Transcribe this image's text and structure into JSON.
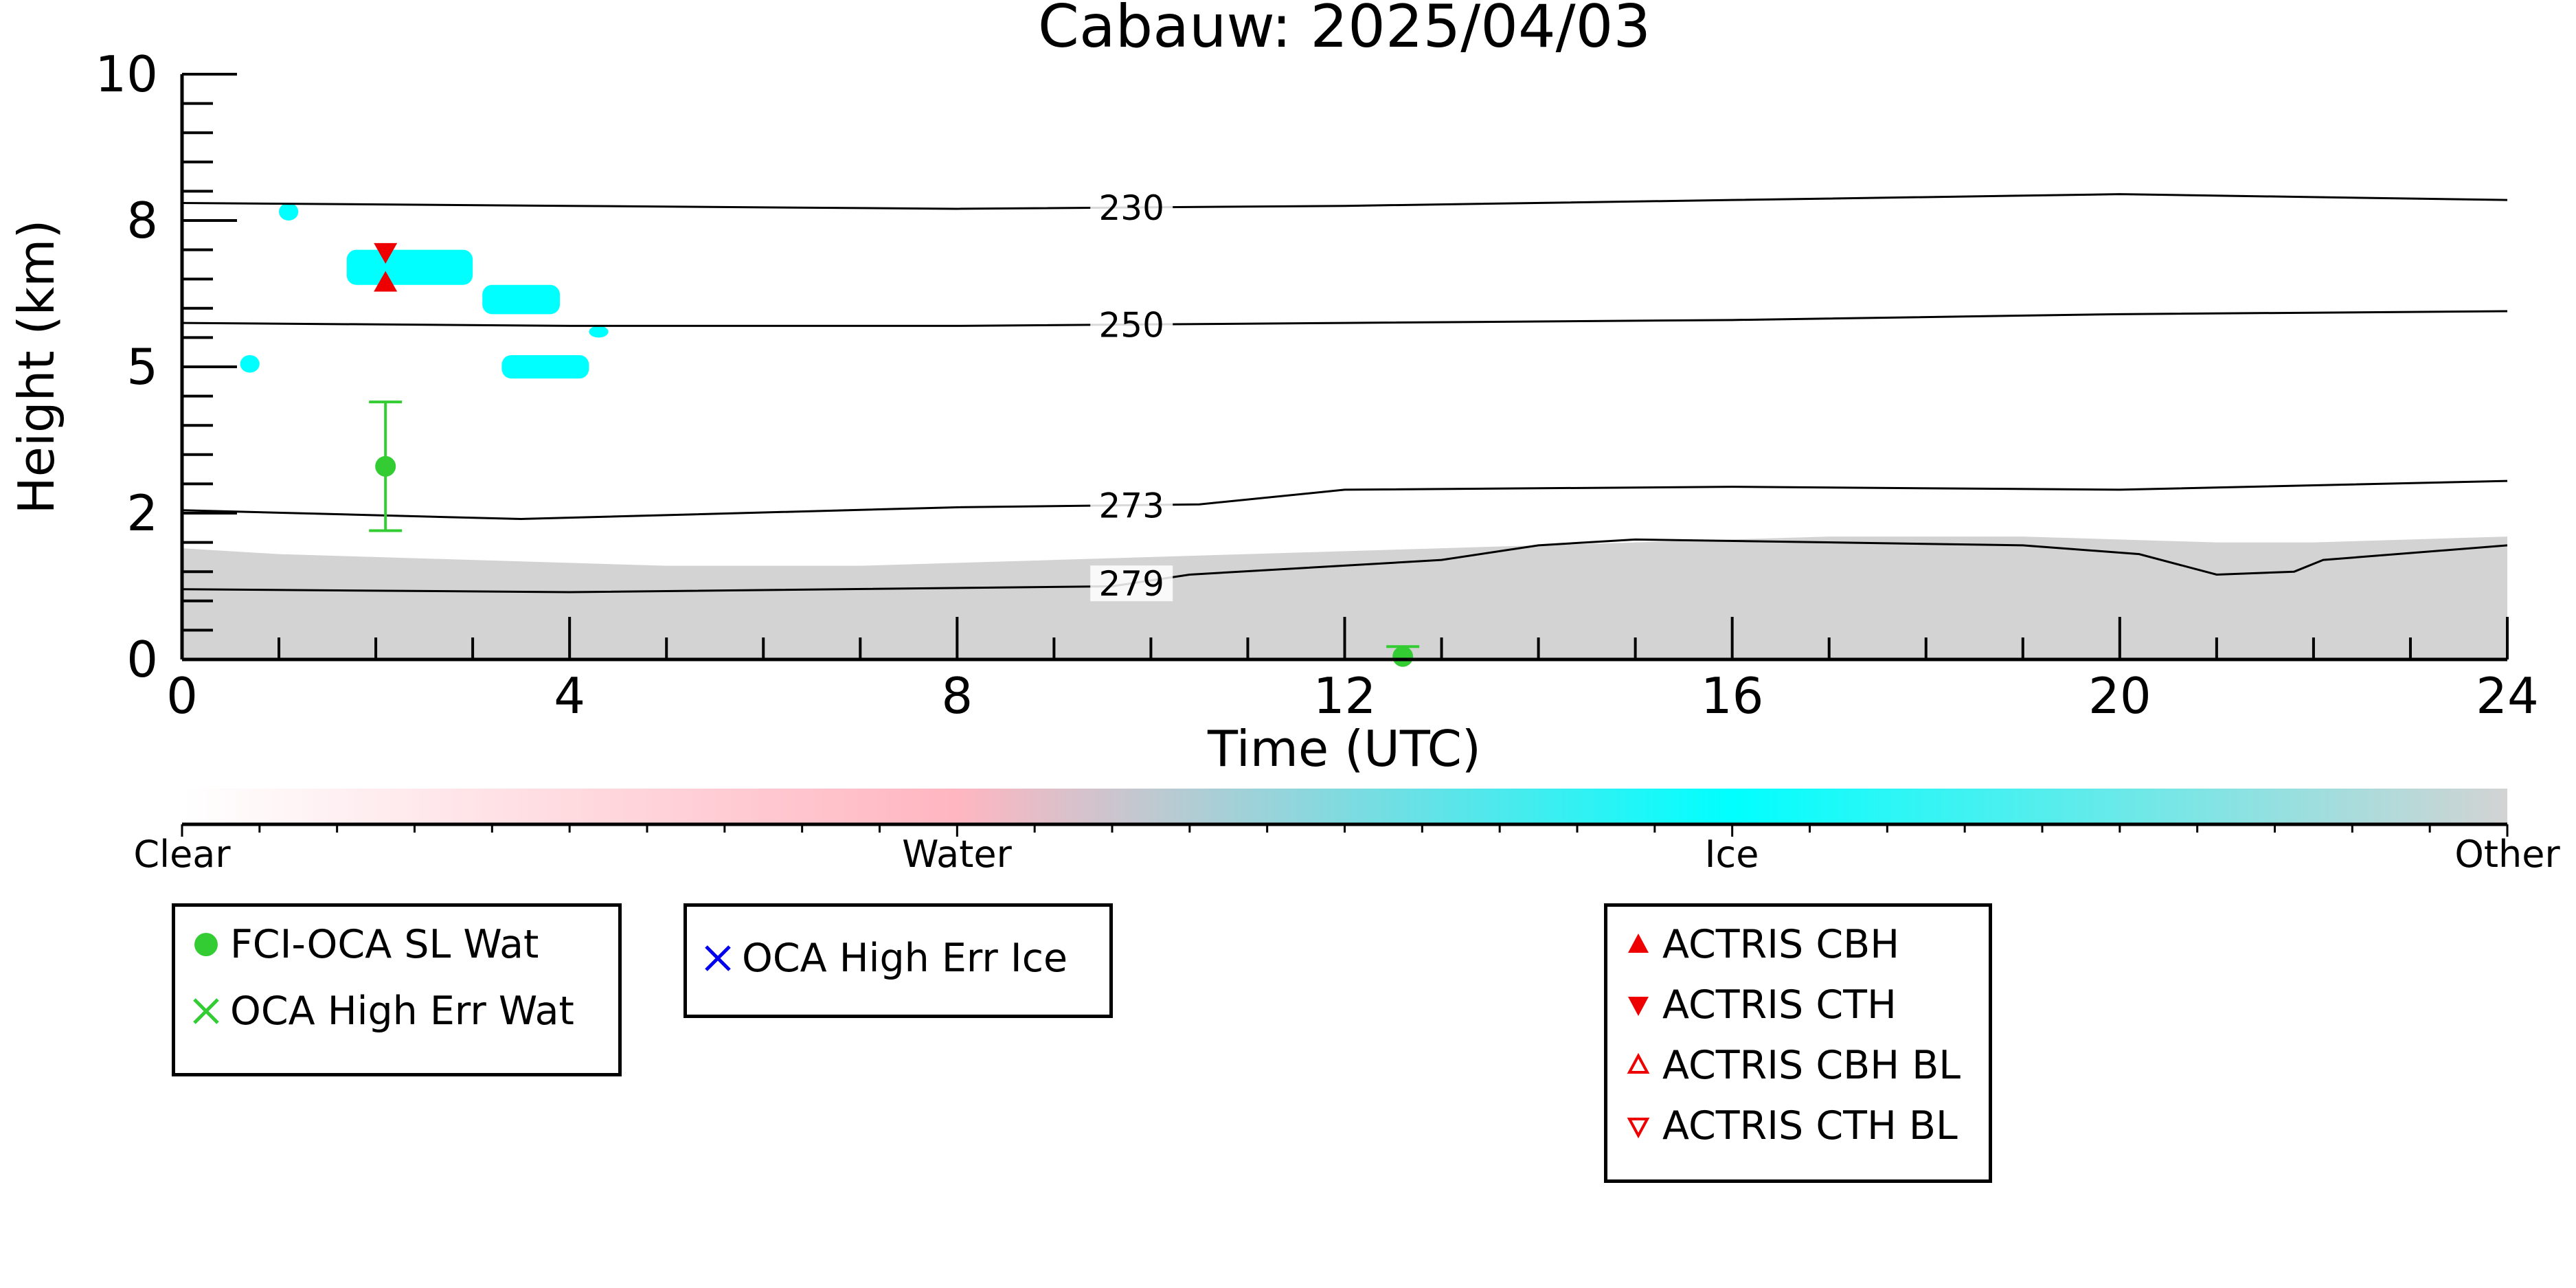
{
  "chart_data": {
    "type": "scatter",
    "title": "Cabauw: 2025/04/03",
    "xlabel": "Time (UTC)",
    "ylabel": "Height (km)",
    "xlim": [
      0,
      24
    ],
    "ylim": [
      0,
      10
    ],
    "x_ticks": [
      "0",
      "4",
      "8",
      "12",
      "16",
      "20",
      "24"
    ],
    "y_ticks": [
      "0",
      "2",
      "5",
      "8",
      "10"
    ],
    "y_tick_values": [
      0,
      2.5,
      5,
      7.5,
      10
    ],
    "background": {
      "colorbar_labels": [
        "Clear",
        "Water",
        "Ice",
        "Other"
      ],
      "colors": {
        "clear": "#ffffff",
        "water": "#ffb6c1",
        "ice": "#00ffff",
        "other": "#d3d3d3"
      },
      "other_layer_top_km": [
        1.9,
        1.8,
        1.75,
        1.7,
        1.65,
        1.6,
        1.6,
        1.6,
        1.65,
        1.7,
        1.75,
        1.8,
        1.85,
        1.9,
        1.95,
        2.0,
        2.05,
        2.1,
        2.1,
        2.1,
        2.05,
        2.0,
        2.0,
        2.05,
        2.1
      ],
      "ice_patches": [
        {
          "x": [
            1.7,
            3.0
          ],
          "y": [
            6.4,
            7.0
          ]
        },
        {
          "x": [
            3.1,
            3.9
          ],
          "y": [
            5.9,
            6.4
          ]
        },
        {
          "x": [
            3.3,
            4.2
          ],
          "y": [
            4.8,
            5.2
          ]
        },
        {
          "x": [
            0.6,
            0.8
          ],
          "y": [
            4.9,
            5.2
          ]
        },
        {
          "x": [
            1.0,
            1.2
          ],
          "y": [
            7.5,
            7.8
          ]
        },
        {
          "x": [
            4.2,
            4.4
          ],
          "y": [
            5.5,
            5.7
          ]
        }
      ]
    },
    "temperature_contours": [
      {
        "label": "230",
        "x": [
          0,
          4,
          8,
          12,
          16,
          20,
          24
        ],
        "y": [
          7.8,
          7.75,
          7.7,
          7.75,
          7.85,
          7.95,
          7.85
        ],
        "label_x": 9.8
      },
      {
        "label": "250",
        "x": [
          0,
          4,
          8,
          12,
          16,
          20,
          24
        ],
        "y": [
          5.75,
          5.7,
          5.7,
          5.75,
          5.8,
          5.9,
          5.95
        ],
        "label_x": 9.8
      },
      {
        "label": "273",
        "x": [
          0,
          3.5,
          8,
          10.5,
          12,
          16,
          20,
          24
        ],
        "y": [
          2.55,
          2.4,
          2.6,
          2.65,
          2.9,
          2.95,
          2.9,
          3.05
        ],
        "label_x": 9.8
      },
      {
        "label": "279",
        "x": [
          0,
          4,
          9.6,
          10.4,
          13,
          14,
          15,
          19,
          20.2,
          21,
          21.8,
          22.1,
          24
        ],
        "y": [
          1.2,
          1.15,
          1.25,
          1.45,
          1.7,
          1.95,
          2.05,
          1.95,
          1.8,
          1.45,
          1.5,
          1.7,
          1.95
        ],
        "label_x": 9.8
      }
    ],
    "series": [
      {
        "name": "FCI-OCA SL Wat",
        "marker": "filled-circle",
        "color": "#33cc33",
        "points": [
          {
            "x": 2.1,
            "y": 3.3,
            "yerr": [
              2.2,
              4.4
            ]
          },
          {
            "x": 12.6,
            "y": 0.05,
            "yerr": [
              0.0,
              0.22
            ]
          }
        ]
      },
      {
        "name": "OCA High Err Wat",
        "marker": "x",
        "color": "#33cc33",
        "points": []
      },
      {
        "name": "OCA High Err Ice",
        "marker": "x",
        "color": "#0000ee",
        "points": []
      },
      {
        "name": "ACTRIS CBH",
        "marker": "triangle-up",
        "color": "#ee0000",
        "points": [
          {
            "x": 2.1,
            "y": 6.45
          }
        ]
      },
      {
        "name": "ACTRIS CTH",
        "marker": "triangle-down",
        "color": "#ee0000",
        "points": [
          {
            "x": 2.1,
            "y": 6.95
          }
        ]
      },
      {
        "name": "ACTRIS CBH BL",
        "marker": "triangle-up-open",
        "color": "#ee0000",
        "points": []
      },
      {
        "name": "ACTRIS CTH BL",
        "marker": "triangle-down-open",
        "color": "#ee0000",
        "points": []
      }
    ],
    "legend_groups": [
      [
        "FCI-OCA SL Wat",
        "OCA High Err Wat"
      ],
      [
        "OCA High Err Ice"
      ],
      [
        "ACTRIS CBH",
        "ACTRIS CTH",
        "ACTRIS CBH BL",
        "ACTRIS CTH BL"
      ]
    ]
  }
}
